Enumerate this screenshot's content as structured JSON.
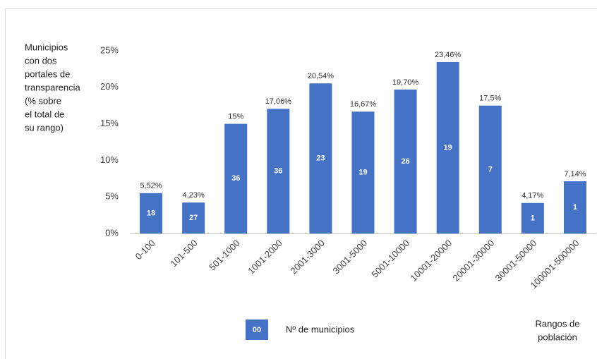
{
  "chart_data": {
    "type": "bar",
    "y_axis_label": [
      "Municipios",
      "con dos",
      "portales de",
      "transparencia",
      "(% sobre",
      "el total de",
      "su rango)"
    ],
    "x_axis_label": [
      "Rangos de",
      "población"
    ],
    "categories": [
      "0-100",
      "101-500",
      "501-1000",
      "1001-2000",
      "2001-3000",
      "3001-5000",
      "5001-10000",
      "10001-20000",
      "20001-30000",
      "30001-50000",
      "100001-500000"
    ],
    "values": [
      5.52,
      4.23,
      15,
      17.06,
      20.54,
      16.67,
      19.7,
      23.46,
      17.5,
      4.17,
      7.14
    ],
    "value_labels": [
      "5,52%",
      "4,23%",
      "15%",
      "17,06%",
      "20,54%",
      "16,67%",
      "19,70%",
      "23,46%",
      "17,5%",
      "4,17%",
      "7,14%"
    ],
    "bar_counts": [
      18,
      27,
      36,
      36,
      23,
      19,
      26,
      19,
      7,
      1,
      1
    ],
    "color": "#4472c4",
    "ylim": [
      0,
      25
    ],
    "yticks": [
      {
        "value": 0,
        "label": "0%"
      },
      {
        "value": 5,
        "label": "5%"
      },
      {
        "value": 10,
        "label": "10%"
      },
      {
        "value": 15,
        "label": "15%"
      },
      {
        "value": 20,
        "label": "20%"
      },
      {
        "value": 25,
        "label": "25%"
      }
    ],
    "grid": false,
    "legend": {
      "symbol": "00",
      "label": "Nº de municipios"
    }
  }
}
